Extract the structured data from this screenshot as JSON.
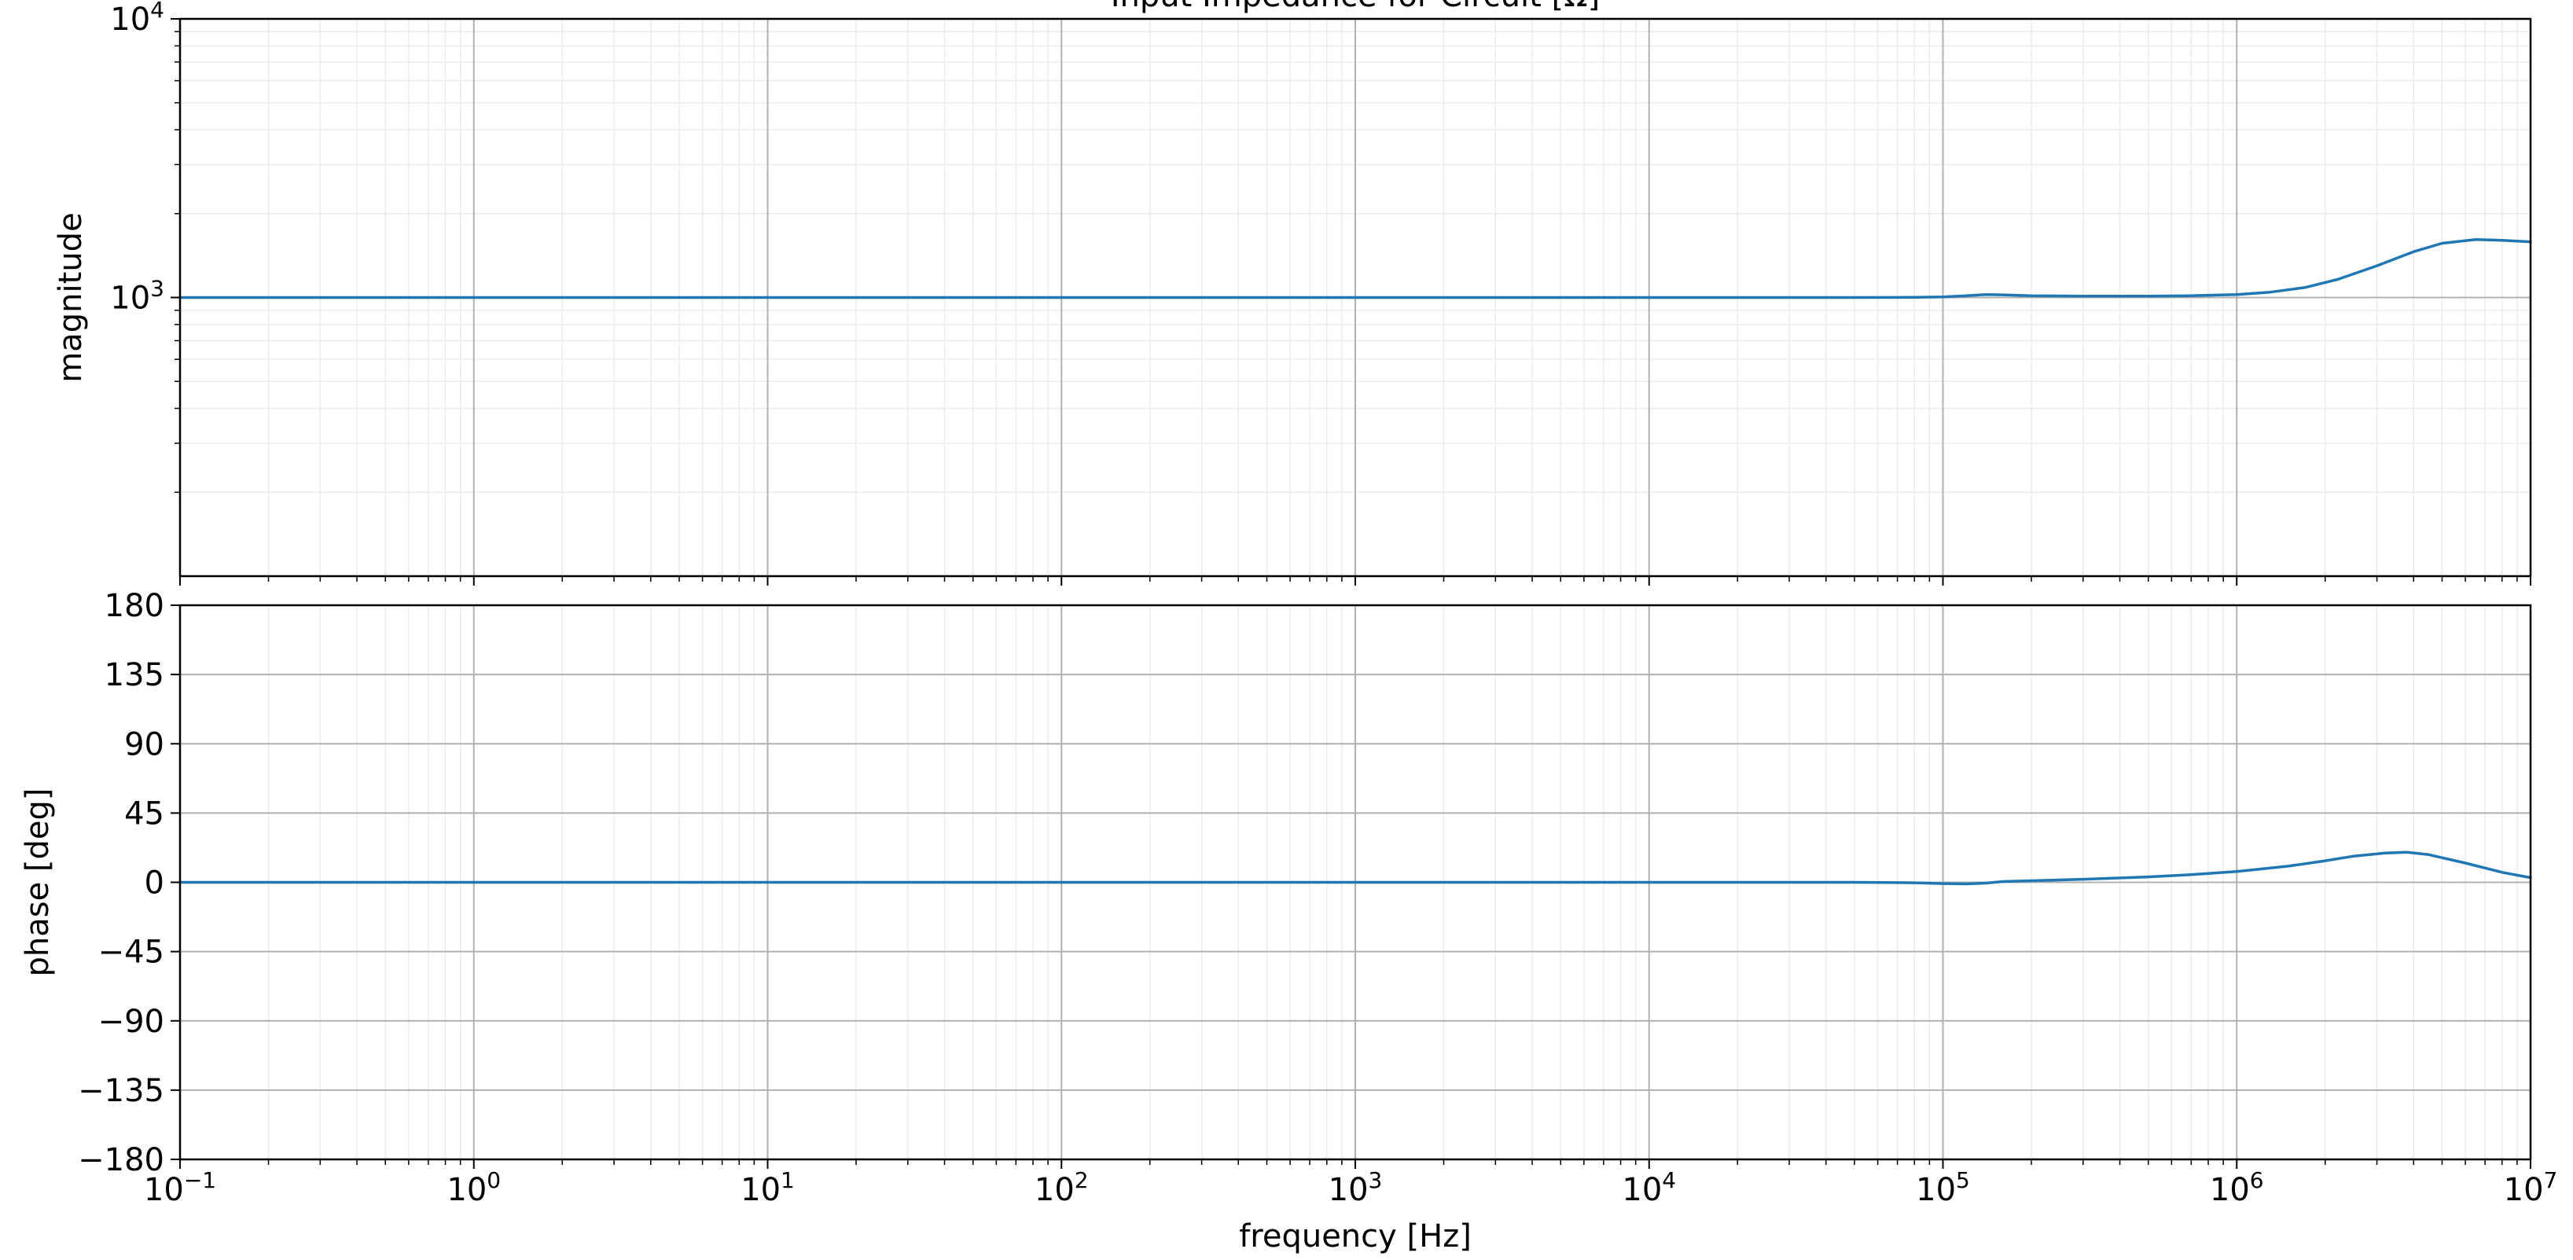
{
  "chart_data": [
    {
      "type": "line",
      "title": "Input Impedance for Circuit [Ω]",
      "xlabel": "",
      "ylabel": "magnitude",
      "xscale": "log",
      "yscale": "log",
      "xlim": [
        0.1,
        10000000
      ],
      "ylim": [
        100,
        10000
      ],
      "x_tick_labels": [
        {
          "base": "10",
          "exp": "−1"
        },
        {
          "base": "10",
          "exp": "0"
        },
        {
          "base": "10",
          "exp": "1"
        },
        {
          "base": "10",
          "exp": "2"
        },
        {
          "base": "10",
          "exp": "3"
        },
        {
          "base": "10",
          "exp": "4"
        },
        {
          "base": "10",
          "exp": "5"
        },
        {
          "base": "10",
          "exp": "6"
        },
        {
          "base": "10",
          "exp": "7"
        }
      ],
      "y_ticks": [
        {
          "value": 1000,
          "base": "10",
          "exp": "3"
        },
        {
          "value": 10000,
          "base": "10",
          "exp": "4"
        }
      ],
      "grid": true,
      "series": [
        {
          "color": "#1f77b4",
          "x": [
            0.1,
            1,
            10,
            100,
            1000,
            10000,
            50000,
            80000,
            100000,
            120000,
            140000,
            160000,
            200000,
            300000,
            500000,
            700000,
            1000000,
            1300000,
            1700000,
            2200000,
            3000000,
            4000000,
            5000000,
            6500000,
            8000000,
            10000000
          ],
          "y": [
            1000,
            1000,
            1000,
            1000,
            1000,
            1000,
            1000,
            1001,
            1005,
            1015,
            1025,
            1022,
            1015,
            1012,
            1012,
            1015,
            1025,
            1045,
            1085,
            1160,
            1300,
            1460,
            1565,
            1615,
            1605,
            1585
          ]
        }
      ]
    },
    {
      "type": "line",
      "title": "",
      "xlabel": "frequency [Hz]",
      "ylabel": "phase [deg]",
      "xscale": "log",
      "xlim": [
        0.1,
        10000000
      ],
      "ylim": [
        -180,
        180
      ],
      "x_tick_labels": [
        {
          "base": "10",
          "exp": "−1"
        },
        {
          "base": "10",
          "exp": "0"
        },
        {
          "base": "10",
          "exp": "1"
        },
        {
          "base": "10",
          "exp": "2"
        },
        {
          "base": "10",
          "exp": "3"
        },
        {
          "base": "10",
          "exp": "4"
        },
        {
          "base": "10",
          "exp": "5"
        },
        {
          "base": "10",
          "exp": "6"
        },
        {
          "base": "10",
          "exp": "7"
        }
      ],
      "y_ticks": [
        {
          "value": 180,
          "label": "180"
        },
        {
          "value": 135,
          "label": "135"
        },
        {
          "value": 90,
          "label": "90"
        },
        {
          "value": 45,
          "label": "45"
        },
        {
          "value": 0,
          "label": "0"
        },
        {
          "value": -45,
          "label": "−45"
        },
        {
          "value": -90,
          "label": "−90"
        },
        {
          "value": -135,
          "label": "−135"
        },
        {
          "value": -180,
          "label": "−180"
        }
      ],
      "grid": true,
      "series": [
        {
          "color": "#1f77b4",
          "x": [
            0.1,
            1,
            10,
            100,
            1000,
            10000,
            50000,
            80000,
            100000,
            120000,
            140000,
            160000,
            200000,
            300000,
            500000,
            700000,
            1000000,
            1500000,
            2000000,
            2500000,
            3200000,
            3800000,
            4500000,
            6000000,
            8000000,
            10000000
          ],
          "y": [
            0,
            0,
            0,
            0,
            0,
            0,
            0,
            -0.3,
            -0.8,
            -1.0,
            -0.5,
            0.5,
            1.0,
            2.0,
            3.5,
            5.0,
            7.0,
            10.5,
            14.0,
            17.0,
            19.0,
            19.5,
            18.0,
            12.5,
            6.5,
            3.0
          ]
        }
      ]
    }
  ]
}
